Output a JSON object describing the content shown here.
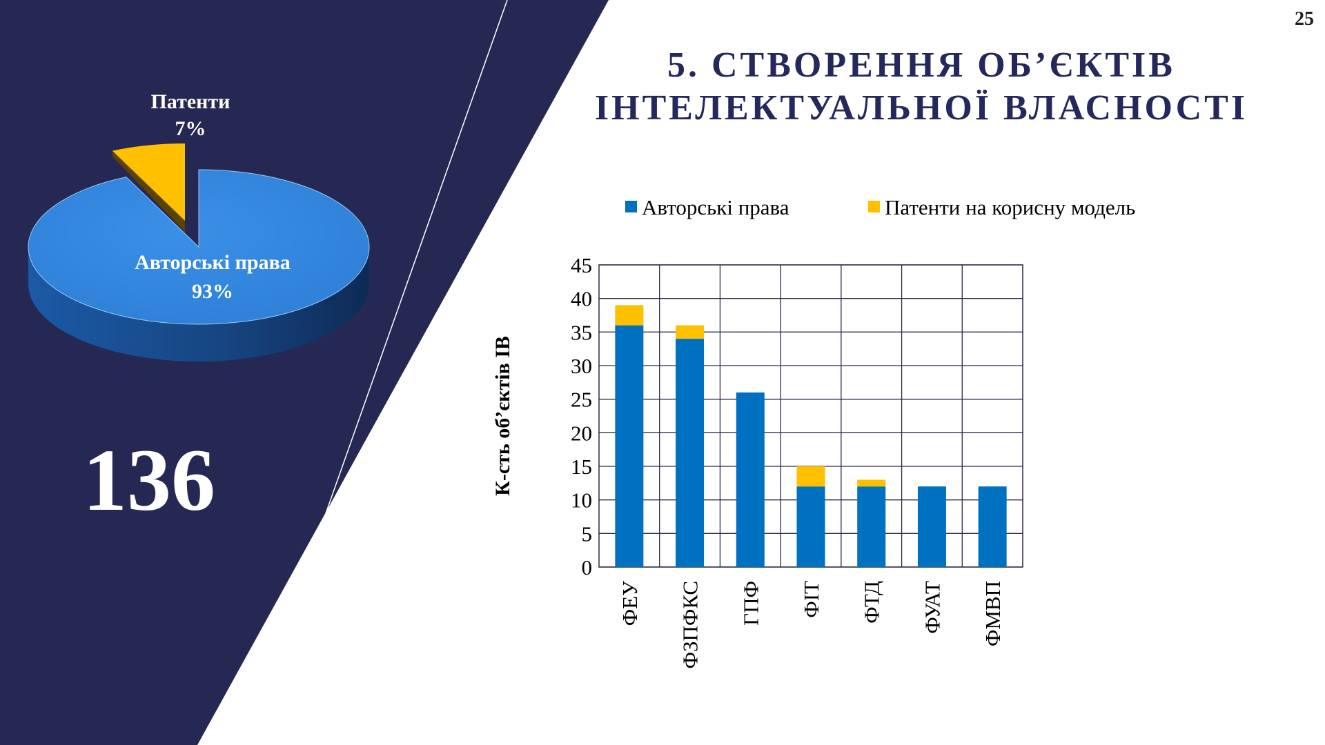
{
  "slide": {
    "page_number": "25",
    "title_line1": "5. СТВОРЕННЯ ОБ’ЄКТІВ",
    "title_line2": "ІНТЕЛЕКТУАЛЬНОЇ ВЛАСНОСТІ",
    "total": "136",
    "colors": {
      "navy": "#262854",
      "title": "#24285a",
      "blue": "#0070c0",
      "yellow": "#ffc000",
      "pie_blue": "#2e7fd6"
    }
  },
  "chart_data": [
    {
      "type": "pie",
      "slices": [
        {
          "label": "Авторські права",
          "value": 93,
          "value_text": "93%",
          "color": "#2e7fd6"
        },
        {
          "label": "Патенти",
          "value": 7,
          "value_text": "7%",
          "color": "#ffc000"
        }
      ]
    },
    {
      "type": "bar",
      "stacked": true,
      "categories": [
        "ФЕУ",
        "ФЗПФКС",
        "ГПФ",
        "ФІТ",
        "ФТД",
        "ФУАТ",
        "ФМВП"
      ],
      "series": [
        {
          "name": "Авторські права",
          "values": [
            36,
            34,
            26,
            12,
            12,
            12,
            12
          ],
          "color": "#0070c0"
        },
        {
          "name": "Патенти на корисну модель",
          "values": [
            3,
            2,
            0,
            3,
            1,
            0,
            0
          ],
          "color": "#ffc000"
        }
      ],
      "ylabel": "К-сть об’єктів ІВ",
      "ylim": [
        0,
        45
      ],
      "yticks": [
        0,
        5,
        10,
        15,
        20,
        25,
        30,
        35,
        40,
        45
      ],
      "grid": true,
      "legend_position": "top"
    }
  ]
}
